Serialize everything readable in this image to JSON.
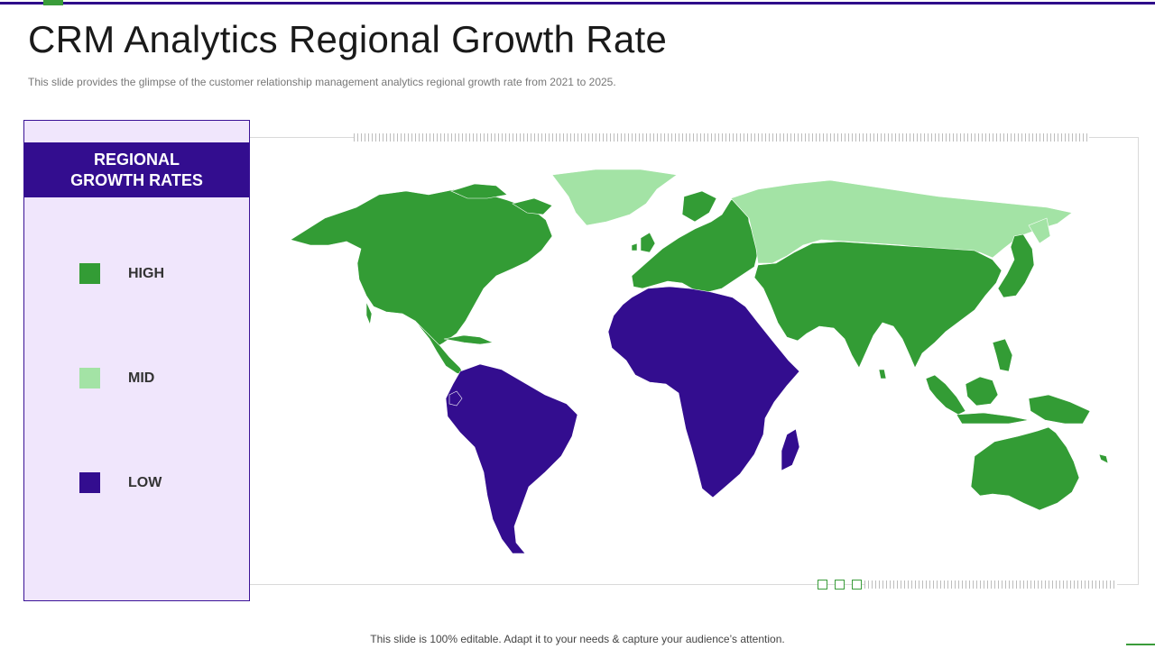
{
  "slide": {
    "title": "CRM Analytics Regional Growth Rate",
    "subtitle": "This slide provides the glimpse of the customer relationship management analytics regional growth rate from 2021 to 2025.",
    "footer": "This slide is 100% editable. Adapt it to your needs & capture your audience’s attention."
  },
  "legend": {
    "heading_line1": "REGIONAL",
    "heading_line2": "GROWTH RATES",
    "items": [
      {
        "label": "HIGH",
        "color": "#339c35"
      },
      {
        "label": "MID",
        "color": "#a3e3a5"
      },
      {
        "label": "LOW",
        "color": "#330d8f"
      }
    ]
  },
  "map": {
    "regions": [
      {
        "name": "North America",
        "level": "HIGH"
      },
      {
        "name": "Greenland",
        "level": "MID"
      },
      {
        "name": "South America",
        "level": "LOW"
      },
      {
        "name": "Europe",
        "level": "HIGH"
      },
      {
        "name": "Russia",
        "level": "MID"
      },
      {
        "name": "Africa",
        "level": "LOW"
      },
      {
        "name": "Asia",
        "level": "HIGH"
      },
      {
        "name": "Oceania",
        "level": "HIGH"
      }
    ]
  },
  "colors": {
    "accent_purple": "#2e0a8a",
    "accent_green": "#3a9c3a"
  }
}
